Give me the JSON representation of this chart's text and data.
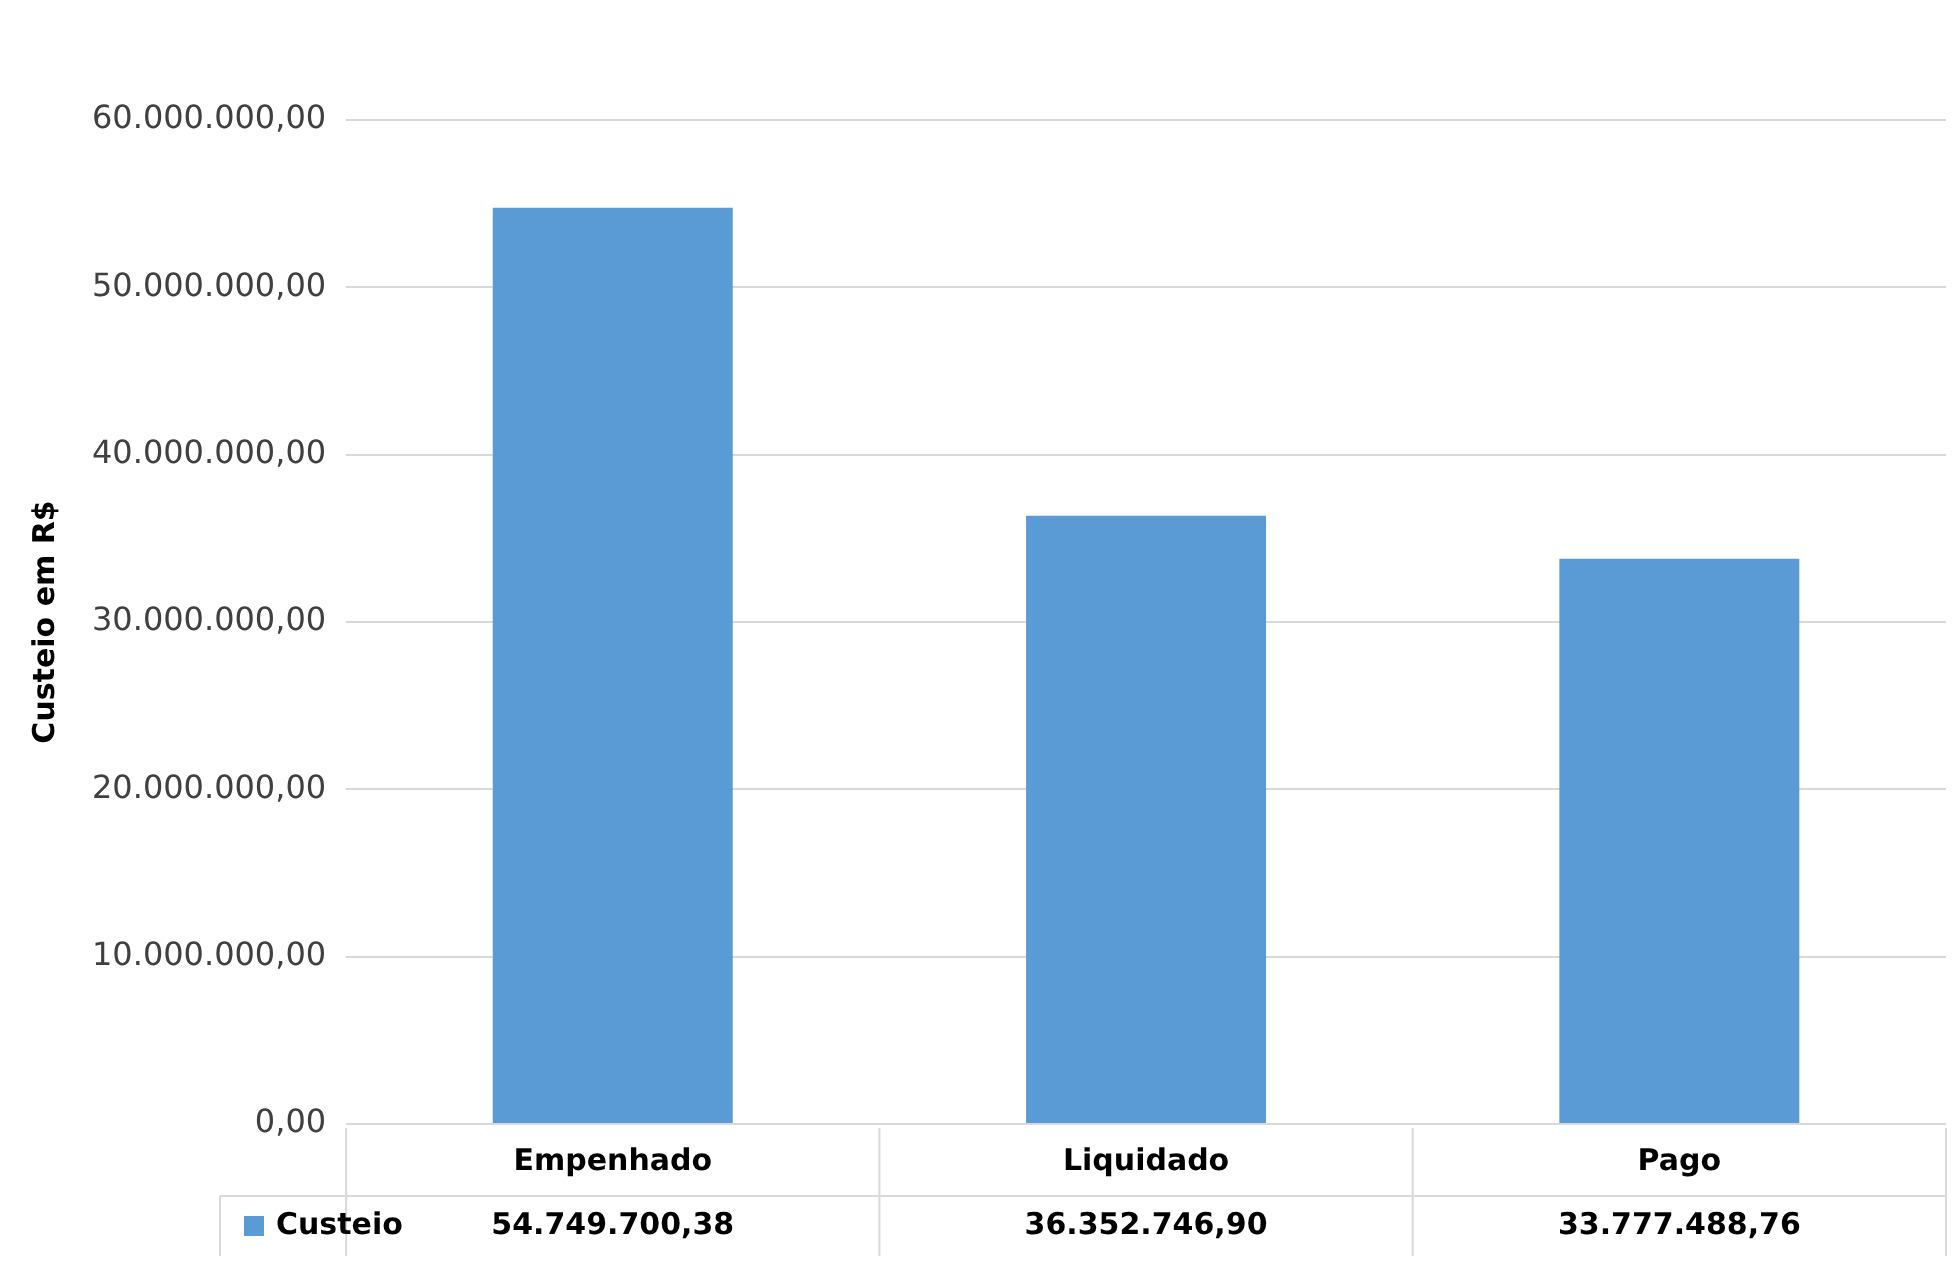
{
  "chart_data": {
    "type": "bar",
    "ylabel": "Custeio em R$",
    "categories": [
      "Empenhado",
      "Liquidado",
      "Pago"
    ],
    "series": [
      {
        "name": "Custeio",
        "color": "#5b9bd5",
        "values": [
          54749700.38,
          36352746.9,
          33777488.76
        ],
        "value_labels": [
          "54.749.700,38",
          "36.352.746,90",
          "33.777.488,76"
        ]
      }
    ],
    "ylim": [
      0,
      60000000
    ],
    "yticks": [
      {
        "value": 0,
        "label": "0,00"
      },
      {
        "value": 10000000,
        "label": "10.000.000,00"
      },
      {
        "value": 20000000,
        "label": "20.000.000,00"
      },
      {
        "value": 30000000,
        "label": "30.000.000,00"
      },
      {
        "value": 40000000,
        "label": "40.000.000,00"
      },
      {
        "value": 50000000,
        "label": "50.000.000,00"
      },
      {
        "value": 60000000,
        "label": "60.000.000,00"
      }
    ],
    "grid": "y",
    "legend": "bottom"
  }
}
